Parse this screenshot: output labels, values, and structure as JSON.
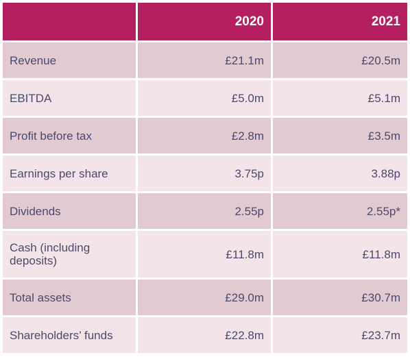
{
  "table": {
    "headers": [
      "",
      "2020",
      "2021"
    ],
    "rows": [
      {
        "label": "Revenue",
        "y2020": "£21.1m",
        "y2021": "£20.5m"
      },
      {
        "label": "EBITDA",
        "y2020": "£5.0m",
        "y2021": "£5.1m"
      },
      {
        "label": "Profit before tax",
        "y2020": "£2.8m",
        "y2021": "£3.5m"
      },
      {
        "label": "Earnings per share",
        "y2020": "3.75p",
        "y2021": "3.88p"
      },
      {
        "label": "Dividends",
        "y2020": "2.55p",
        "y2021": "2.55p*"
      },
      {
        "label": "Cash (including deposits)",
        "y2020": "£11.8m",
        "y2021": "£11.8m"
      },
      {
        "label": "Total assets",
        "y2020": "£29.0m",
        "y2021": "£30.7m"
      },
      {
        "label": "Shareholders’ funds",
        "y2020": "£22.8m",
        "y2021": "£23.7m"
      }
    ]
  },
  "colors": {
    "header_bg": "#b41f60",
    "row_dark": "#e2cad3",
    "row_light": "#f2e4e9",
    "text": "#4b4a6a"
  }
}
